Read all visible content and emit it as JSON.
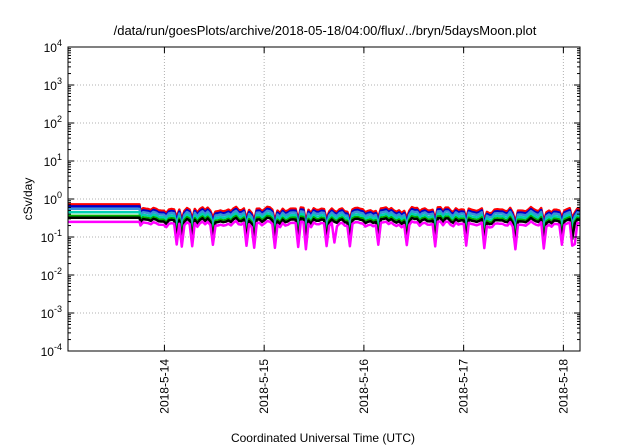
{
  "chart_data": {
    "type": "line",
    "title": "/data/run/goesPlots/archive/2018-05-18/04:00/flux/../bryn/5daysMoon.plot",
    "xlabel": "Coordinated Universal Time (UTC)",
    "ylabel": "cSv/day",
    "yscale": "log",
    "ylim": [
      0.0001,
      10000
    ],
    "xlim": [
      "2018-05-13 00:48",
      "2018-05-18 04:00"
    ],
    "grid": true,
    "y_ticks": [
      {
        "value": 0.0001,
        "base": "10",
        "exp": "-4"
      },
      {
        "value": 0.001,
        "base": "10",
        "exp": "-3"
      },
      {
        "value": 0.01,
        "base": "10",
        "exp": "-2"
      },
      {
        "value": 0.1,
        "base": "10",
        "exp": "-1"
      },
      {
        "value": 1,
        "base": "10",
        "exp": "0"
      },
      {
        "value": 10,
        "base": "10",
        "exp": "1"
      },
      {
        "value": 100,
        "base": "10",
        "exp": "2"
      },
      {
        "value": 1000,
        "base": "10",
        "exp": "3"
      },
      {
        "value": 10000,
        "base": "10",
        "exp": "4"
      }
    ],
    "x_ticks": [
      "2018-5-14",
      "2018-5-15",
      "2018-5-16",
      "2018-5-17",
      "2018-5-18"
    ],
    "series": [
      {
        "color": "#ff0000",
        "flat_value": 0.72,
        "mean_value": 0.52,
        "offset": 0
      },
      {
        "color": "#0000c8",
        "flat_value": 0.64,
        "mean_value": 0.46,
        "offset": 1
      },
      {
        "color": "#3a8fd9",
        "flat_value": 0.55,
        "mean_value": 0.41,
        "offset": 2
      },
      {
        "color": "#00d0b0",
        "flat_value": 0.45,
        "mean_value": 0.35,
        "offset": 3
      },
      {
        "color": "#00b000",
        "flat_value": 0.36,
        "mean_value": 0.3,
        "offset": 4
      },
      {
        "color": "#000000",
        "flat_value": 0.32,
        "mean_value": 0.27,
        "offset": 5
      },
      {
        "color": "#ff00ff",
        "flat_value": 0.25,
        "mean_value": 0.22,
        "offset": 6
      }
    ]
  }
}
